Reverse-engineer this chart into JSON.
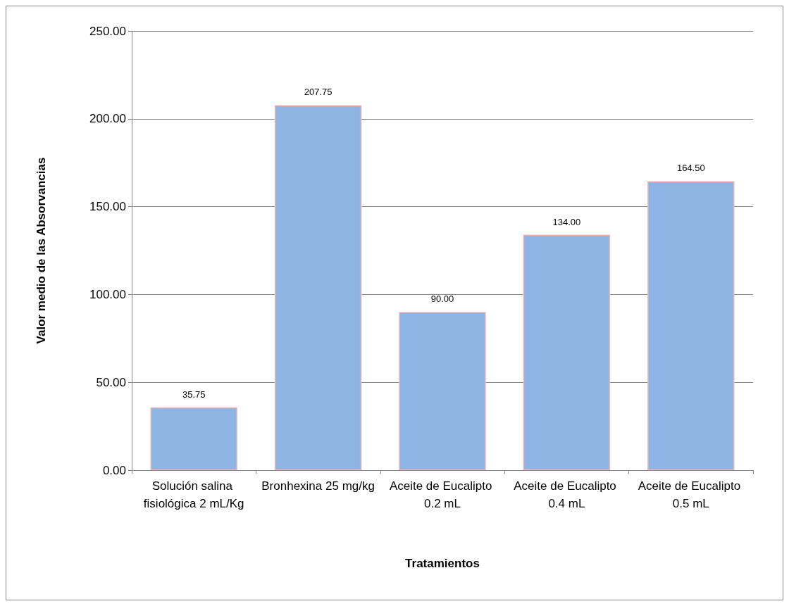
{
  "chart_data": {
    "type": "bar",
    "xlabel": "Tratamientos",
    "ylabel": "Valor medio de las Absorvancias",
    "categories": [
      "Solución salina fisiológica 2 mL/Kg",
      "Bronhexina 25 mg/kg",
      "Aceite de Eucalipto 0.2 mL",
      "Aceite de Eucalipto 0.4 mL",
      "Aceite de Eucalipto 0.5 mL"
    ],
    "values": [
      35.75,
      207.75,
      90,
      134,
      164.5
    ],
    "value_labels": [
      "35.75",
      "207.75",
      "90.00",
      "134.00",
      "164.50"
    ],
    "color": "#8eb4e3",
    "ylim": [
      0,
      250
    ],
    "yticks": [
      {
        "value": 0,
        "label": "0.00"
      },
      {
        "value": 50,
        "label": "50.00"
      },
      {
        "value": 100,
        "label": "100.00"
      },
      {
        "value": 150,
        "label": "150.00"
      },
      {
        "value": 200,
        "label": "200.00"
      },
      {
        "value": 250,
        "label": "250.00"
      }
    ],
    "grid": "y"
  }
}
